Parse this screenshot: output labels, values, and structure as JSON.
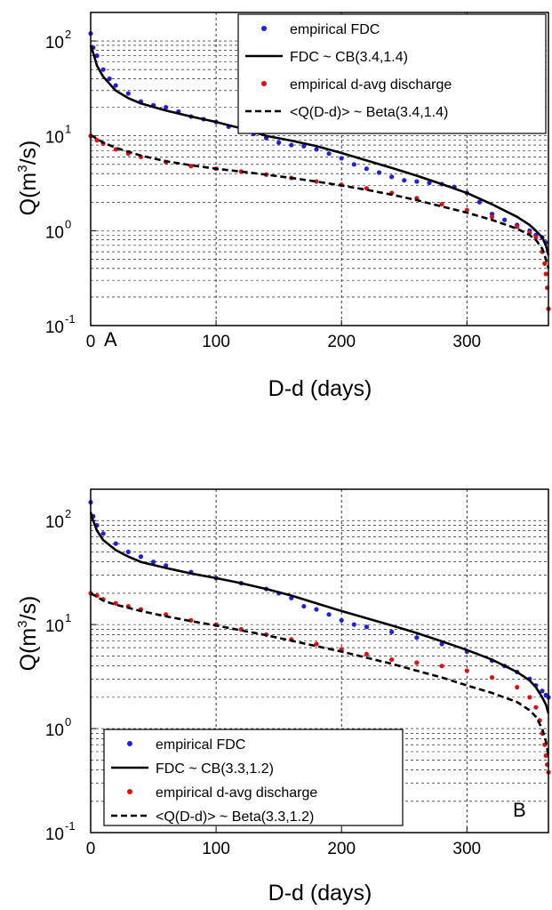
{
  "chart_data": [
    {
      "type": "line",
      "panel_label": "A",
      "xlabel": "D-d (days)",
      "ylabel": "Q(m³/s)",
      "ylabel_parts": {
        "base": "Q(m",
        "sup": "3",
        "end": "/s)"
      },
      "xlim": [
        0,
        365
      ],
      "ylim": [
        0.1,
        200
      ],
      "yscale": "log",
      "grid": true,
      "legend_position": "top-right",
      "x_ticks": [
        0,
        100,
        200,
        300
      ],
      "y_ticks": [
        {
          "value": 0.1,
          "base": "10",
          "exp": "-1"
        },
        {
          "value": 1,
          "base": "10",
          "exp": "0"
        },
        {
          "value": 10,
          "base": "10",
          "exp": "1"
        },
        {
          "value": 100,
          "base": "10",
          "exp": "2"
        }
      ],
      "series": [
        {
          "name": "empirical FDC",
          "kind": "points",
          "color": "#1f1fdc",
          "x": [
            0,
            2,
            5,
            10,
            15,
            20,
            30,
            40,
            50,
            60,
            70,
            80,
            90,
            100,
            110,
            120,
            130,
            140,
            150,
            160,
            170,
            180,
            190,
            200,
            210,
            220,
            230,
            240,
            250,
            260,
            270,
            280,
            290,
            300,
            310,
            320,
            330,
            340,
            350,
            355,
            360,
            363
          ],
          "y": [
            120,
            85,
            70,
            50,
            40,
            34,
            28,
            23,
            21,
            20,
            18,
            16,
            15,
            14,
            12.5,
            11.5,
            10.5,
            9.5,
            8.5,
            8,
            7.8,
            7.2,
            6.5,
            5.8,
            5,
            4.5,
            4.1,
            3.7,
            3.4,
            3.3,
            3.2,
            3.1,
            2.9,
            2.5,
            2,
            1.5,
            1.3,
            1.15,
            1.0,
            0.9,
            0.85,
            0.75
          ]
        },
        {
          "name": "FDC ~ CB(3.4,1.4)",
          "kind": "line",
          "dash": "solid",
          "color": "#000000",
          "x": [
            0,
            2,
            5,
            10,
            20,
            30,
            40,
            60,
            80,
            100,
            120,
            140,
            160,
            180,
            200,
            220,
            240,
            260,
            280,
            300,
            320,
            340,
            350,
            355,
            360,
            363,
            365
          ],
          "y": [
            90,
            75,
            55,
            42,
            30,
            25,
            22,
            18.5,
            16,
            14,
            12,
            10,
            8.9,
            7.8,
            6.6,
            5.5,
            4.6,
            3.8,
            3.1,
            2.5,
            1.9,
            1.4,
            1.15,
            1.0,
            0.85,
            0.7,
            0.55
          ]
        },
        {
          "name": "empirical d-avg discharge",
          "kind": "points",
          "color": "#e01010",
          "x": [
            0,
            5,
            10,
            20,
            30,
            40,
            60,
            80,
            100,
            120,
            140,
            160,
            180,
            200,
            220,
            240,
            260,
            280,
            300,
            320,
            340,
            350,
            355,
            360,
            362,
            363,
            364,
            365
          ],
          "y": [
            10,
            9,
            8.3,
            7.2,
            6.5,
            6,
            5.3,
            4.8,
            4.5,
            4.2,
            3.9,
            3.6,
            3.3,
            3.05,
            2.8,
            2.5,
            2.2,
            1.9,
            1.65,
            1.4,
            1.1,
            0.95,
            0.85,
            0.6,
            0.45,
            0.35,
            0.25,
            0.15
          ]
        },
        {
          "name": "<Q(D-d)> ~ Beta(3.4,1.4)",
          "kind": "line",
          "dash": "dashed",
          "color": "#000000",
          "x": [
            0,
            5,
            10,
            20,
            30,
            40,
            60,
            80,
            100,
            120,
            140,
            160,
            180,
            200,
            220,
            240,
            260,
            280,
            300,
            320,
            340,
            350,
            355,
            360,
            363,
            365
          ],
          "y": [
            10.2,
            9.3,
            8.5,
            7.5,
            6.8,
            6.2,
            5.4,
            4.9,
            4.5,
            4.2,
            3.9,
            3.6,
            3.3,
            3.0,
            2.7,
            2.4,
            2.1,
            1.8,
            1.55,
            1.3,
            1.05,
            0.9,
            0.8,
            0.65,
            0.5,
            0.4
          ]
        }
      ]
    },
    {
      "type": "line",
      "panel_label": "B",
      "xlabel": "D-d (days)",
      "ylabel": "Q(m³/s)",
      "ylabel_parts": {
        "base": "Q(m",
        "sup": "3",
        "end": "/s)"
      },
      "xlim": [
        0,
        365
      ],
      "ylim": [
        0.1,
        200
      ],
      "yscale": "log",
      "grid": true,
      "legend_position": "bottom-left",
      "x_ticks": [
        0,
        100,
        200,
        300
      ],
      "y_ticks": [
        {
          "value": 0.1,
          "base": "10",
          "exp": "-1"
        },
        {
          "value": 1,
          "base": "10",
          "exp": "0"
        },
        {
          "value": 10,
          "base": "10",
          "exp": "1"
        },
        {
          "value": 100,
          "base": "10",
          "exp": "2"
        }
      ],
      "series": [
        {
          "name": "empirical FDC",
          "kind": "points",
          "color": "#1f1fdc",
          "x": [
            0,
            2,
            5,
            10,
            20,
            30,
            40,
            50,
            60,
            80,
            100,
            120,
            140,
            150,
            160,
            170,
            180,
            190,
            200,
            210,
            220,
            240,
            260,
            280,
            300,
            320,
            330,
            340,
            350,
            355,
            360,
            363,
            365
          ],
          "y": [
            150,
            110,
            90,
            75,
            60,
            50,
            45,
            40,
            37,
            32,
            28,
            25,
            22,
            20,
            18,
            15,
            14,
            12.5,
            11,
            10,
            9.5,
            8.5,
            7.5,
            6.5,
            5.5,
            4.5,
            4.0,
            3.5,
            3.0,
            2.6,
            2.3,
            2.1,
            2.0
          ]
        },
        {
          "name": "FDC ~ CB(3.3,1.2)",
          "kind": "line",
          "dash": "solid",
          "color": "#000000",
          "x": [
            0,
            2,
            5,
            10,
            20,
            30,
            40,
            60,
            80,
            100,
            120,
            140,
            160,
            180,
            200,
            220,
            240,
            260,
            280,
            300,
            320,
            340,
            350,
            355,
            360,
            363,
            365
          ],
          "y": [
            120,
            100,
            80,
            65,
            52,
            45,
            40,
            35,
            31,
            28,
            25,
            22,
            19,
            16,
            13.5,
            11.5,
            9.8,
            8.3,
            6.9,
            5.7,
            4.6,
            3.5,
            2.9,
            2.5,
            2.0,
            1.7,
            1.4
          ]
        },
        {
          "name": "empirical d-avg discharge",
          "kind": "points",
          "color": "#e01010",
          "x": [
            0,
            5,
            10,
            20,
            30,
            40,
            60,
            80,
            100,
            120,
            140,
            160,
            180,
            200,
            220,
            240,
            260,
            280,
            300,
            320,
            340,
            350,
            355,
            358,
            360,
            362,
            363,
            364,
            365
          ],
          "y": [
            20,
            19,
            17.5,
            16,
            15,
            14,
            12.5,
            11,
            10,
            9,
            8,
            7.2,
            6.5,
            5.8,
            5.2,
            4.6,
            4.3,
            4.0,
            3.6,
            3.1,
            2.5,
            2.0,
            1.6,
            1.2,
            0.9,
            0.7,
            0.55,
            0.45,
            0.38
          ]
        },
        {
          "name": "<Q(D-d)> ~ Beta(3.3,1.2)",
          "kind": "line",
          "dash": "dashed",
          "color": "#000000",
          "x": [
            0,
            5,
            10,
            20,
            30,
            40,
            60,
            80,
            100,
            120,
            140,
            160,
            180,
            200,
            220,
            240,
            260,
            280,
            300,
            320,
            340,
            350,
            355,
            360,
            363,
            365
          ],
          "y": [
            20,
            18.5,
            17,
            15.5,
            14.5,
            13.5,
            12,
            10.8,
            9.8,
            8.8,
            7.9,
            7.0,
            6.2,
            5.5,
            4.8,
            4.2,
            3.6,
            3.1,
            2.6,
            2.2,
            1.8,
            1.5,
            1.3,
            1.0,
            0.75,
            0.55
          ]
        }
      ]
    }
  ]
}
